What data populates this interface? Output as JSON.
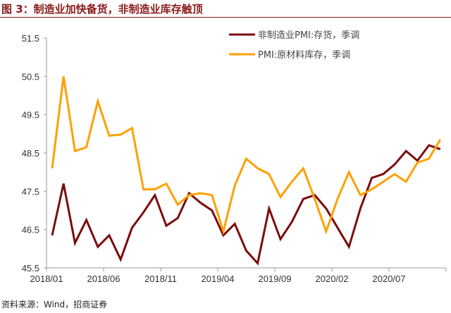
{
  "title": "图 3：制造业加快备货，非制造业库存触顶",
  "source": "资料来源：Wind，招商证券",
  "chart_data": {
    "type": "line",
    "title": "图 3：制造业加快备货，非制造业库存触顶",
    "xlabel": "",
    "ylabel": "",
    "ylim": [
      45.5,
      51.5
    ],
    "yticks": [
      "45.5",
      "46.5",
      "47.5",
      "48.5",
      "49.5",
      "50.5",
      "51.5"
    ],
    "xtick_labels": [
      "2018/01",
      "2018/06",
      "2018/11",
      "2019/04",
      "2019/09",
      "2020/02",
      "2020/07"
    ],
    "xtick_index": [
      0,
      5,
      10,
      15,
      20,
      25,
      30
    ],
    "x": [
      "2018/01",
      "2018/02",
      "2018/03",
      "2018/04",
      "2018/05",
      "2018/06",
      "2018/07",
      "2018/08",
      "2018/09",
      "2018/10",
      "2018/11",
      "2018/12",
      "2019/01",
      "2019/02",
      "2019/03",
      "2019/04",
      "2019/05",
      "2019/06",
      "2019/07",
      "2019/08",
      "2019/09",
      "2019/10",
      "2019/11",
      "2019/12",
      "2020/01",
      "2020/02",
      "2020/03",
      "2020/04",
      "2020/05",
      "2020/06",
      "2020/07",
      "2020/08",
      "2020/09",
      "2020/10",
      "2020/11"
    ],
    "grid": false,
    "legend_position": "top-right",
    "series": [
      {
        "name": "非制造业PMI:存货，季调",
        "color": "#7b0c0c",
        "values": [
          46.35,
          47.7,
          46.15,
          46.75,
          46.05,
          46.35,
          45.72,
          46.55,
          46.95,
          47.4,
          46.6,
          46.8,
          47.45,
          47.2,
          47.0,
          46.35,
          46.65,
          45.95,
          45.62,
          47.05,
          46.25,
          46.7,
          47.3,
          47.4,
          47.05,
          46.55,
          46.05,
          47.05,
          47.85,
          47.95,
          48.2,
          48.55,
          48.3,
          48.7,
          48.6
        ]
      },
      {
        "name": "PMI:原材料库存，季调",
        "color": "#ffa000",
        "values": [
          48.1,
          50.5,
          48.55,
          48.65,
          49.85,
          48.95,
          48.98,
          49.15,
          47.55,
          47.55,
          47.7,
          47.15,
          47.4,
          47.45,
          47.4,
          46.45,
          47.65,
          48.35,
          48.1,
          47.95,
          47.35,
          47.75,
          48.1,
          47.3,
          46.45,
          47.3,
          48.0,
          47.4,
          47.55,
          47.75,
          47.95,
          47.75,
          48.25,
          48.35,
          48.85
        ]
      }
    ]
  }
}
